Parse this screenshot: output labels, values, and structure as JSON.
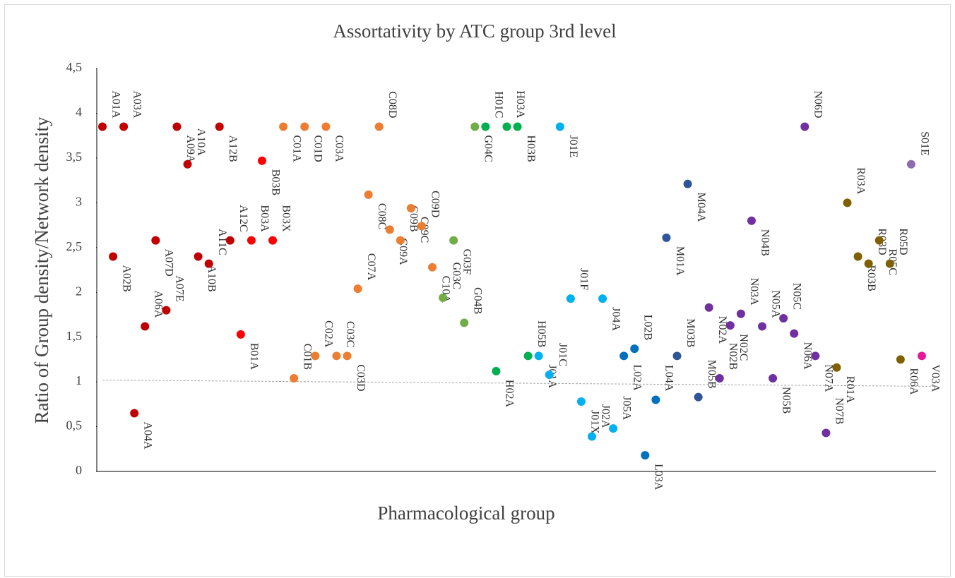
{
  "chart_data": {
    "type": "scatter",
    "title": "Assortativity by ATC group 3rd level",
    "x_label": "Pharmacological group",
    "y_label": "Ratio of Group density/Network density",
    "categories": [
      "A01A",
      "A02B",
      "A03A",
      "A04A",
      "A06A",
      "A07D",
      "A07E",
      "A09A",
      "A10A",
      "A10B",
      "A11C",
      "A12B",
      "A12C",
      "B01A",
      "B03A",
      "B03B",
      "B03X",
      "C01A",
      "C01B",
      "C01D",
      "C02A",
      "C03A",
      "C03C",
      "C03D",
      "C07A",
      "C08C",
      "C08D",
      "C09A",
      "C09B",
      "C09C",
      "C09D",
      "C10A",
      "G03C",
      "G03F",
      "G04B",
      "G04C",
      "H01C",
      "H02A",
      "H03A",
      "H03B",
      "H05B",
      "J01A",
      "J01C",
      "J01E",
      "J01F",
      "J01X",
      "J02A",
      "J04A",
      "J05A",
      "L02A",
      "L02B",
      "L03A",
      "L04A",
      "M01A",
      "M03B",
      "M04A",
      "M05B",
      "N02A",
      "N02B",
      "N02C",
      "N03A",
      "N04B",
      "N05A",
      "N05B",
      "N05C",
      "N06A",
      "N06D",
      "N07A",
      "N07B",
      "R01A",
      "R03A",
      "R03B",
      "R03D",
      "R05C",
      "R05D",
      "R06A",
      "S01E",
      "V03A"
    ],
    "values": [
      3.85,
      2.4,
      3.85,
      0.65,
      1.62,
      2.58,
      1.8,
      3.85,
      3.43,
      2.4,
      2.32,
      3.85,
      2.58,
      1.53,
      2.58,
      3.47,
      2.58,
      3.85,
      1.04,
      3.85,
      1.29,
      3.85,
      1.29,
      1.29,
      2.04,
      3.09,
      3.85,
      2.7,
      2.58,
      2.94,
      2.74,
      2.28,
      1.94,
      2.58,
      1.66,
      3.85,
      3.85,
      1.12,
      3.85,
      3.85,
      1.29,
      1.29,
      1.08,
      3.85,
      1.93,
      0.78,
      0.39,
      1.93,
      0.48,
      1.29,
      1.37,
      0.18,
      0.8,
      2.61,
      1.29,
      3.21,
      0.83,
      1.83,
      1.04,
      1.63,
      1.76,
      2.8,
      1.62,
      1.04,
      1.71,
      1.54,
      3.85,
      1.29,
      0.43,
      1.16,
      3.0,
      2.4,
      2.32,
      2.58,
      2.32,
      1.25,
      3.43,
      1.29
    ],
    "colors": [
      "#c00000",
      "#c00000",
      "#c00000",
      "#c00000",
      "#c00000",
      "#c00000",
      "#c00000",
      "#c00000",
      "#c00000",
      "#c00000",
      "#c00000",
      "#c00000",
      "#c00000",
      "#ff0000",
      "#ff0000",
      "#ff0000",
      "#ff0000",
      "#ed7d31",
      "#ed7d31",
      "#ed7d31",
      "#ed7d31",
      "#ed7d31",
      "#ed7d31",
      "#ed7d31",
      "#ed7d31",
      "#ed7d31",
      "#ed7d31",
      "#ed7d31",
      "#ed7d31",
      "#ed7d31",
      "#ed7d31",
      "#ed7d31",
      "#70ad47",
      "#70ad47",
      "#70ad47",
      "#70ad47",
      "#00b050",
      "#00b050",
      "#00b050",
      "#00b050",
      "#00b050",
      "#00b0f0",
      "#00b0f0",
      "#00b0f0",
      "#00b0f0",
      "#00b0f0",
      "#00b0f0",
      "#00b0f0",
      "#00b0f0",
      "#0070c0",
      "#0070c0",
      "#0070c0",
      "#0070c0",
      "#2f5597",
      "#2f5597",
      "#2f5597",
      "#2f5597",
      "#7030a0",
      "#7030a0",
      "#7030a0",
      "#7030a0",
      "#7030a0",
      "#7030a0",
      "#7030a0",
      "#7030a0",
      "#7030a0",
      "#7030a0",
      "#7030a0",
      "#7030a0",
      "#7f6000",
      "#7f6000",
      "#7f6000",
      "#7f6000",
      "#7f6000",
      "#7f6000",
      "#7f6000",
      "#8e6bb0",
      "#e6199b"
    ],
    "trendline": [
      1.02,
      0.95
    ],
    "ylim": [
      0,
      4.5
    ],
    "yticks": [
      0,
      {
        "value": 0.5,
        "label": "0,5"
      },
      1,
      {
        "value": 1.5,
        "label": "1,5"
      },
      2,
      {
        "value": 2.5,
        "label": "2,5"
      },
      3,
      {
        "value": 3.5,
        "label": "3,5"
      },
      4,
      {
        "value": 4.5,
        "label": "4,5"
      }
    ]
  }
}
